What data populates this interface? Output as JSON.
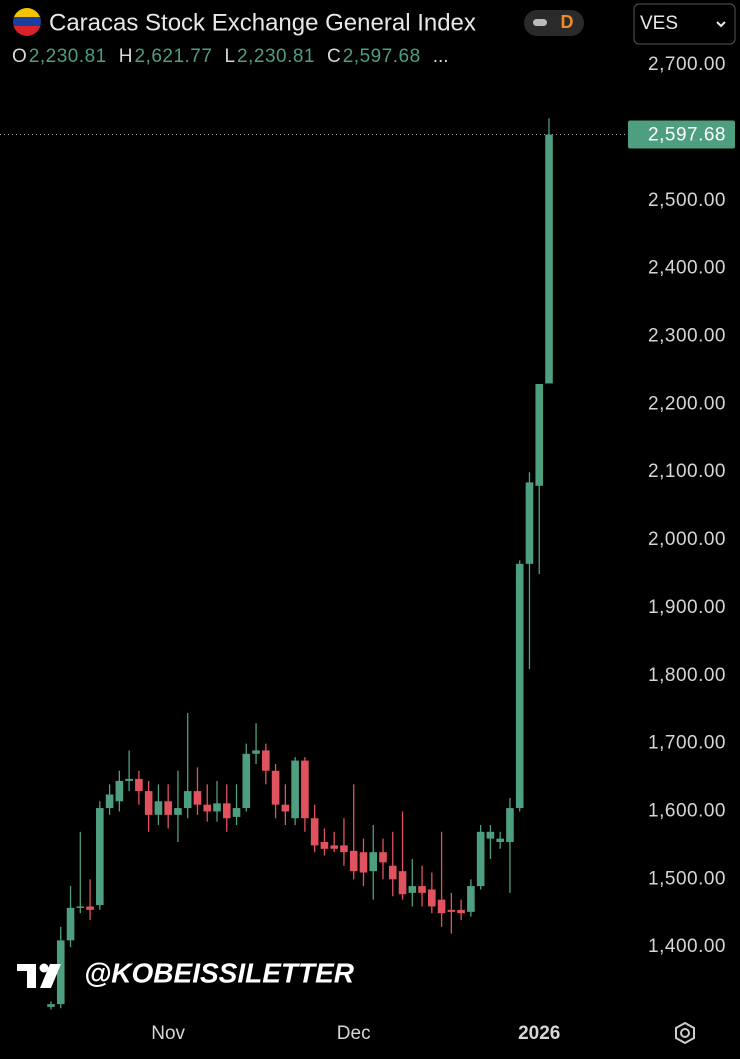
{
  "chart_data": {
    "type": "candlestick",
    "title": "Caracas Stock Exchange General Index",
    "interval": "D",
    "currency": "VES",
    "ohlc_legend": [
      {
        "key": "O",
        "text": "2,230.81"
      },
      {
        "key": "H",
        "text": "2,621.77"
      },
      {
        "key": "L",
        "text": "2,230.81"
      },
      {
        "key": "C",
        "text": "2,597.68"
      }
    ],
    "more": "...",
    "watermark": "@KOBEISSILETTER",
    "up_color": "#4e9e80",
    "down_color": "#e0535e",
    "last_price": {
      "value": 2597.68,
      "label": "2,597.68"
    },
    "ylim": [
      1300,
      2796
    ],
    "yticks": [
      {
        "value": 1400,
        "label": "1,400.00"
      },
      {
        "value": 1500,
        "label": "1,500.00"
      },
      {
        "value": 1600,
        "label": "1,600.00"
      },
      {
        "value": 1700,
        "label": "1,700.00"
      },
      {
        "value": 1800,
        "label": "1,800.00"
      },
      {
        "value": 1900,
        "label": "1,900.00"
      },
      {
        "value": 2000,
        "label": "2,000.00"
      },
      {
        "value": 2100,
        "label": "2,100.00"
      },
      {
        "value": 2200,
        "label": "2,200.00"
      },
      {
        "value": 2300,
        "label": "2,300.00"
      },
      {
        "value": 2400,
        "label": "2,400.00"
      },
      {
        "value": 2500,
        "label": "2,500.00"
      },
      {
        "value": 2600,
        "label": "2,600.00"
      },
      {
        "value": 2700,
        "label": "2,700.00"
      }
    ],
    "categories": [
      null,
      null,
      null,
      null,
      null,
      null,
      null,
      null,
      null,
      null,
      null,
      null,
      "Nov",
      null,
      null,
      null,
      null,
      null,
      null,
      null,
      null,
      null,
      null,
      null,
      null,
      null,
      null,
      null,
      null,
      null,
      null,
      "Dec",
      null,
      null,
      null,
      null,
      null,
      null,
      null,
      null,
      null,
      null,
      null,
      null,
      null,
      null,
      null,
      null,
      null,
      null,
      "2026",
      null
    ],
    "open": [
      1312,
      1316,
      1410,
      1458,
      1460,
      1462,
      1605,
      1615,
      1645,
      1648,
      1630,
      1595,
      1615,
      1595,
      1605,
      1630,
      1610,
      1600,
      1612,
      1592,
      1605,
      1685,
      1690,
      1660,
      1610,
      1590,
      1675,
      1590,
      1555,
      1550,
      1550,
      1542,
      1540,
      1512,
      1540,
      1520,
      1512,
      1480,
      1490,
      1485,
      1470,
      1455,
      1455,
      1452,
      1490,
      1560,
      1555,
      1555,
      1605,
      1965,
      2080,
      2230.81
    ],
    "high": [
      1320,
      1430,
      1490,
      1570,
      1500,
      1615,
      1640,
      1660,
      1690,
      1660,
      1645,
      1640,
      1640,
      1660,
      1745,
      1665,
      1640,
      1645,
      1640,
      1640,
      1700,
      1730,
      1700,
      1670,
      1640,
      1680,
      1680,
      1610,
      1575,
      1570,
      1590,
      1640,
      1560,
      1580,
      1560,
      1570,
      1600,
      1530,
      1520,
      1510,
      1570,
      1480,
      1470,
      1500,
      1580,
      1580,
      1570,
      1620,
      1970,
      2100,
      2230,
      2621.77
    ],
    "low": [
      1308,
      1310,
      1400,
      1450,
      1440,
      1455,
      1595,
      1600,
      1630,
      1610,
      1570,
      1580,
      1575,
      1555,
      1590,
      1595,
      1585,
      1585,
      1570,
      1580,
      1600,
      1670,
      1640,
      1590,
      1580,
      1580,
      1570,
      1540,
      1535,
      1540,
      1520,
      1500,
      1490,
      1470,
      1500,
      1475,
      1470,
      1460,
      1460,
      1450,
      1430,
      1420,
      1440,
      1445,
      1485,
      1530,
      1545,
      1480,
      1600,
      1810,
      1950,
      2230.81
    ],
    "close": [
      1316,
      1410,
      1458,
      1460,
      1455,
      1605,
      1625,
      1645,
      1648,
      1630,
      1595,
      1615,
      1595,
      1605,
      1630,
      1610,
      1600,
      1612,
      1590,
      1605,
      1685,
      1690,
      1660,
      1610,
      1600,
      1675,
      1590,
      1550,
      1545,
      1545,
      1540,
      1512,
      1510,
      1540,
      1525,
      1500,
      1478,
      1490,
      1480,
      1460,
      1450,
      1452,
      1450,
      1490,
      1570,
      1570,
      1560,
      1605,
      1965,
      2085,
      2230,
      2597.68
    ]
  }
}
